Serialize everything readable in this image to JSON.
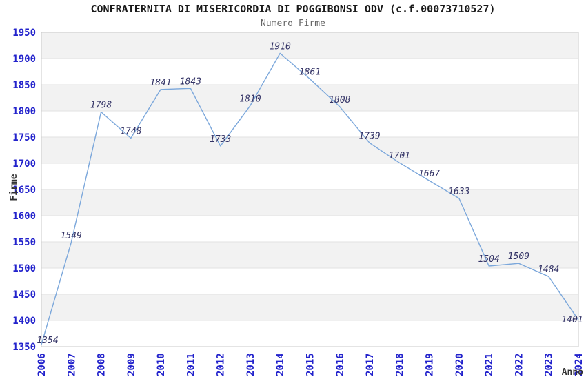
{
  "chart_data": {
    "type": "line",
    "title": "CONFRATERNITA DI MISERICORDIA DI POGGIBONSI ODV (c.f.00073710527)",
    "subtitle": "Numero Firme",
    "xlabel": "Anno",
    "ylabel": "Firme",
    "categories": [
      "2006",
      "2007",
      "2008",
      "2009",
      "2010",
      "2011",
      "2012",
      "2013",
      "2014",
      "2015",
      "2016",
      "2017",
      "2018",
      "2019",
      "2020",
      "2021",
      "2022",
      "2023",
      "2024"
    ],
    "values": [
      1354,
      1549,
      1798,
      1748,
      1841,
      1843,
      1733,
      1810,
      1910,
      1861,
      1808,
      1739,
      1701,
      1667,
      1633,
      1504,
      1509,
      1484,
      1401
    ],
    "ylim": [
      1350,
      1950
    ],
    "ytick_step": 50,
    "grid": "horizontal-bands",
    "legend": "none",
    "colors": {
      "line": "#7BA7DB",
      "tick_label": "#2323CC",
      "data_label": "#333366",
      "axis_title": "#333333",
      "band_gray": "#F2F2F2",
      "band_white": "#FFFFFF",
      "grid_line": "#E2E2E2",
      "plot_border": "#C9C9C9",
      "title_color": "#1A1A1A",
      "subtitle_color": "#666666"
    }
  }
}
